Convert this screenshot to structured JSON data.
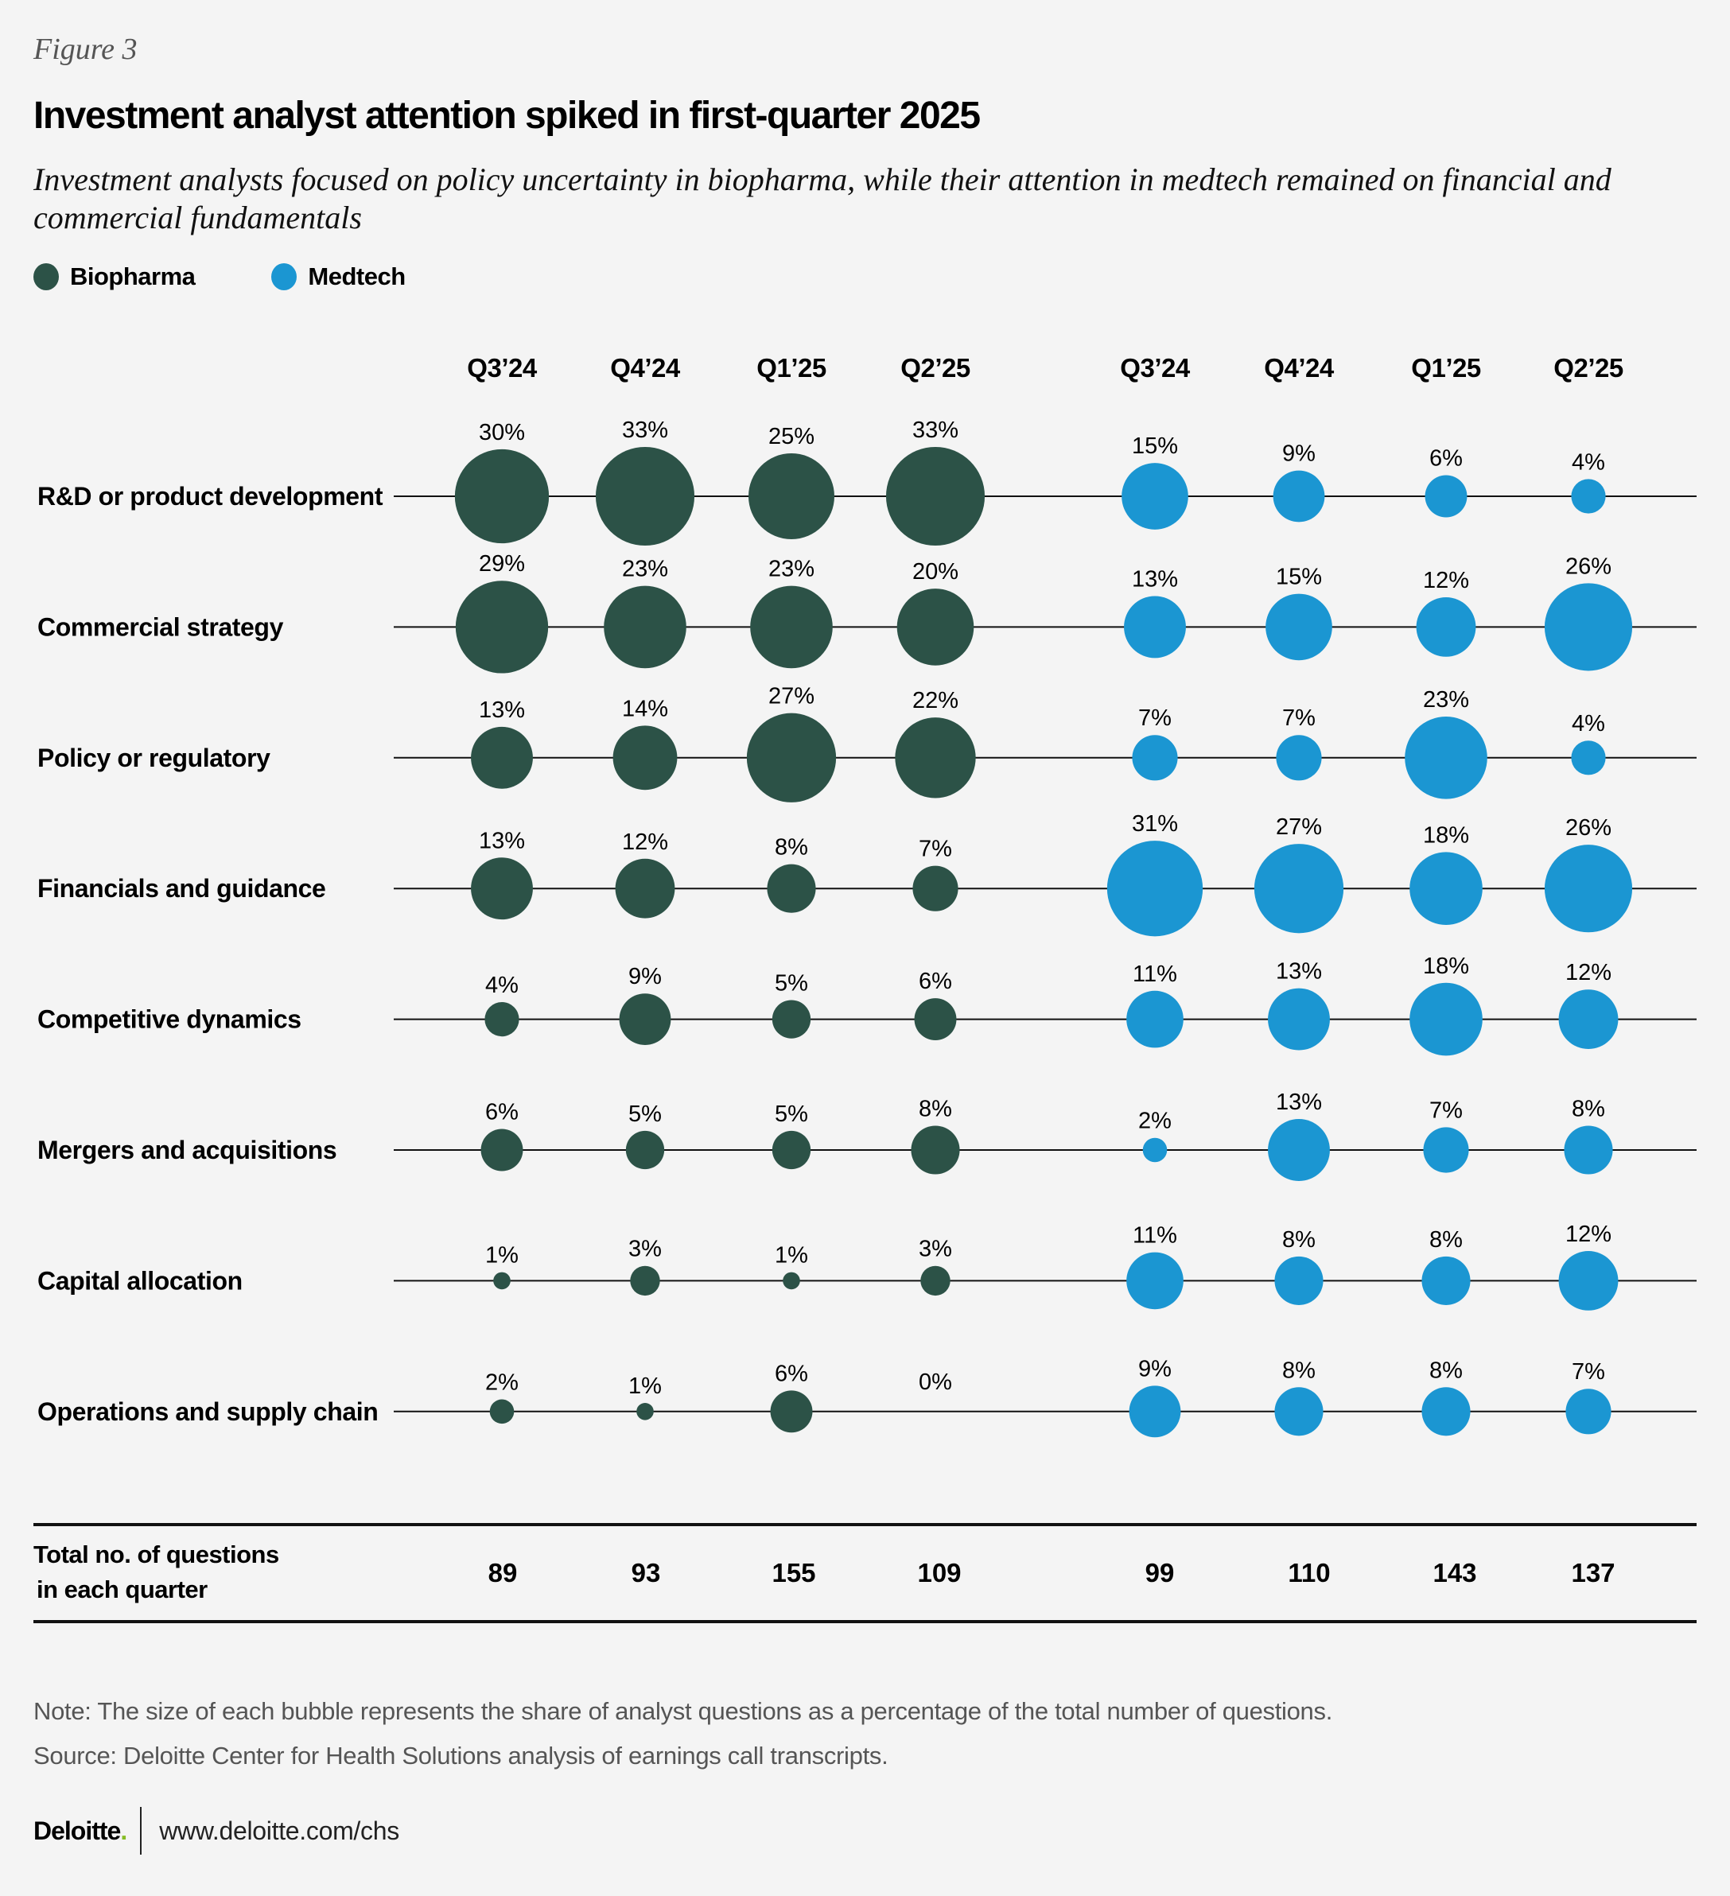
{
  "figure_label": "Figure 3",
  "title": "Investment analyst attention spiked in first-quarter 2025",
  "subtitle": "Investment analysts focused on policy uncertainty in biopharma, while their attention in medtech remained on financial and commercial fundamentals",
  "legend": [
    {
      "label": "Biopharma",
      "color": "#2c5247"
    },
    {
      "label": "Medtech",
      "color": "#1b96d2"
    }
  ],
  "chart_data": {
    "type": "bubble-matrix",
    "title": "Investment analyst attention spiked in first-quarter 2025",
    "unit": "% of analyst questions",
    "groups": [
      "Biopharma",
      "Medtech"
    ],
    "colors": {
      "Biopharma": "#2c5247",
      "Medtech": "#1b96d2"
    },
    "quarters": [
      "Q3’24",
      "Q4’24",
      "Q1’25",
      "Q2’25"
    ],
    "categories": [
      "R&D or product development",
      "Commercial strategy",
      "Policy or regulatory",
      "Financials and guidance",
      "Competitive dynamics",
      "Mergers and acquisitions",
      "Capital allocation",
      "Operations and supply chain"
    ],
    "series": [
      {
        "name": "Biopharma",
        "values": [
          [
            30,
            33,
            25,
            33
          ],
          [
            29,
            23,
            23,
            20
          ],
          [
            13,
            14,
            27,
            22
          ],
          [
            13,
            12,
            8,
            7
          ],
          [
            4,
            9,
            5,
            6
          ],
          [
            6,
            5,
            5,
            8
          ],
          [
            1,
            3,
            1,
            3
          ],
          [
            2,
            1,
            6,
            0
          ]
        ],
        "totals": [
          89,
          93,
          155,
          109
        ]
      },
      {
        "name": "Medtech",
        "values": [
          [
            15,
            9,
            6,
            4
          ],
          [
            13,
            15,
            12,
            26
          ],
          [
            7,
            7,
            23,
            4
          ],
          [
            31,
            27,
            18,
            26
          ],
          [
            11,
            13,
            18,
            12
          ],
          [
            2,
            13,
            7,
            8
          ],
          [
            11,
            8,
            8,
            12
          ],
          [
            9,
            8,
            8,
            7
          ]
        ],
        "totals": [
          99,
          110,
          143,
          137
        ]
      }
    ],
    "totals_label": [
      "Total no. of questions",
      "in each quarter"
    ]
  },
  "note": "Note: The size of each bubble represents the share of analyst questions as a percentage of the total number of questions.",
  "source": "Source: Deloitte Center for Health Solutions analysis of earnings call transcripts.",
  "footer": {
    "brand": "Deloitte",
    "brand_dot": ".",
    "url": "www.deloitte.com/chs"
  }
}
